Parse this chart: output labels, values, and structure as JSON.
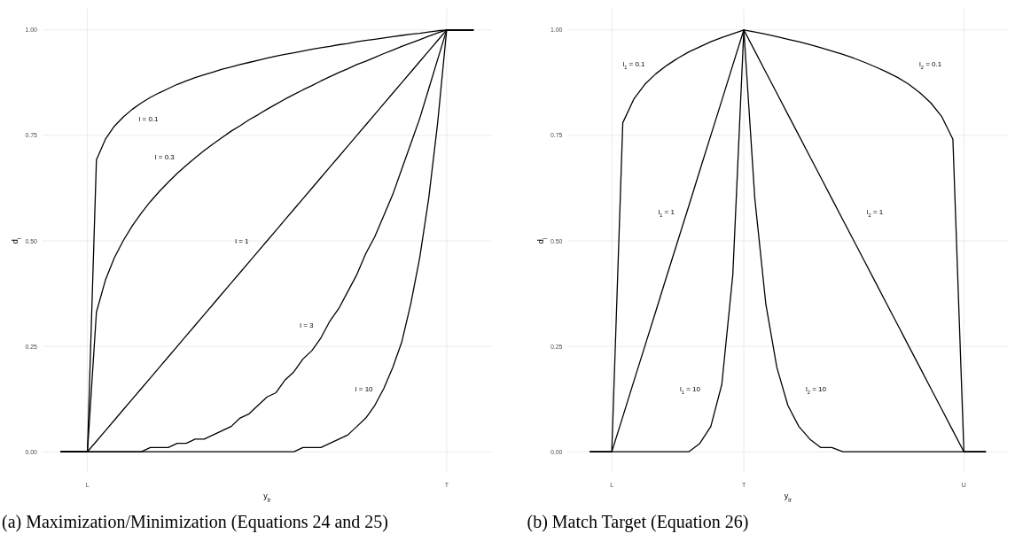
{
  "chart_data": [
    {
      "type": "line",
      "title": "(a) Maximization/Minimization (Equations 24 and 25)",
      "xlabel": "y$_{ir}$",
      "ylabel": "d$_{i}$",
      "ylim": [
        -0.05,
        1.05
      ],
      "yticks": [
        {
          "value": 0,
          "label": "0.00"
        },
        {
          "value": 0.25,
          "label": "0.25"
        },
        {
          "value": 0.5,
          "label": "0.50"
        },
        {
          "value": 0.75,
          "label": "0.75"
        },
        {
          "value": 1,
          "label": "1.00"
        }
      ],
      "grid": true,
      "marker": "none",
      "line_style": "solid",
      "categories": [
        null,
        null,
        null,
        "L",
        null,
        null,
        null,
        null,
        null,
        null,
        null,
        null,
        null,
        null,
        null,
        null,
        null,
        null,
        null,
        null,
        null,
        null,
        null,
        null,
        null,
        null,
        null,
        null,
        null,
        null,
        null,
        null,
        null,
        null,
        null,
        null,
        null,
        null,
        null,
        null,
        null,
        null,
        null,
        "T",
        null,
        null,
        null
      ],
      "series": [
        {
          "color": "#000000",
          "values": [
            0,
            0,
            0,
            0,
            0.692,
            0.741,
            0.772,
            0.794,
            0.812,
            0.827,
            0.84,
            0.851,
            0.861,
            0.871,
            0.879,
            0.887,
            0.894,
            0.9,
            0.907,
            0.912,
            0.918,
            0.923,
            0.928,
            0.933,
            0.938,
            0.942,
            0.946,
            0.95,
            0.954,
            0.958,
            0.961,
            0.965,
            0.968,
            0.972,
            0.975,
            0.978,
            0.981,
            0.984,
            0.987,
            0.99,
            0.992,
            0.995,
            0.998,
            1,
            1,
            1,
            1
          ]
        },
        {
          "color": "#000000",
          "values": [
            0,
            0,
            0,
            0,
            0.331,
            0.407,
            0.46,
            0.501,
            0.536,
            0.566,
            0.593,
            0.617,
            0.639,
            0.66,
            0.679,
            0.697,
            0.714,
            0.73,
            0.745,
            0.76,
            0.773,
            0.787,
            0.799,
            0.812,
            0.824,
            0.836,
            0.847,
            0.858,
            0.868,
            0.879,
            0.889,
            0.899,
            0.908,
            0.918,
            0.926,
            0.935,
            0.944,
            0.952,
            0.961,
            0.969,
            0.977,
            0.985,
            0.993,
            1,
            1,
            1,
            1
          ]
        },
        {
          "color": "#000000",
          "values": [
            0,
            0,
            0,
            0,
            0.025,
            0.05,
            0.075,
            0.1,
            0.125,
            0.15,
            0.175,
            0.2,
            0.225,
            0.25,
            0.275,
            0.3,
            0.325,
            0.35,
            0.375,
            0.4,
            0.425,
            0.45,
            0.475,
            0.5,
            0.525,
            0.55,
            0.575,
            0.6,
            0.625,
            0.65,
            0.675,
            0.7,
            0.725,
            0.75,
            0.775,
            0.8,
            0.825,
            0.85,
            0.875,
            0.9,
            0.925,
            0.95,
            0.975,
            1,
            1,
            1,
            1
          ]
        },
        {
          "color": "#000000",
          "values": [
            0,
            0,
            0,
            0,
            0,
            0,
            0,
            0,
            0,
            0,
            0.01,
            0.01,
            0.01,
            0.02,
            0.02,
            0.03,
            0.03,
            0.04,
            0.05,
            0.06,
            0.08,
            0.09,
            0.11,
            0.13,
            0.14,
            0.17,
            0.19,
            0.22,
            0.24,
            0.27,
            0.31,
            0.34,
            0.38,
            0.42,
            0.47,
            0.51,
            0.56,
            0.61,
            0.67,
            0.73,
            0.79,
            0.86,
            0.93,
            1,
            1,
            1,
            1
          ]
        },
        {
          "color": "#000000",
          "values": [
            0,
            0,
            0,
            0,
            0,
            0,
            0,
            0,
            0,
            0,
            0,
            0,
            0,
            0,
            0,
            0,
            0,
            0,
            0,
            0,
            0,
            0,
            0,
            0,
            0,
            0,
            0,
            0.01,
            0.01,
            0.01,
            0.02,
            0.03,
            0.04,
            0.06,
            0.08,
            0.11,
            0.15,
            0.2,
            0.26,
            0.35,
            0.46,
            0.6,
            0.78,
            1,
            1,
            1,
            1
          ]
        }
      ],
      "annotations": [
        "l = 0.1",
        "l = 0.3",
        "l = 1",
        "l = 3",
        "l = 10"
      ]
    },
    {
      "type": "line",
      "title": "(b) Match Target (Equation 26)",
      "xlabel": "y$_{ir}$",
      "ylabel": "d$_{i}$",
      "ylim": [
        -0.05,
        1.05
      ],
      "yticks": [
        {
          "value": 0,
          "label": "0.00"
        },
        {
          "value": 0.25,
          "label": "0.25"
        },
        {
          "value": 0.5,
          "label": "0.50"
        },
        {
          "value": 0.75,
          "label": "0.75"
        },
        {
          "value": 1,
          "label": "1.00"
        }
      ],
      "grid": true,
      "marker": "none",
      "line_style": "solid",
      "categories": [
        null,
        null,
        "L",
        null,
        null,
        null,
        null,
        null,
        null,
        null,
        null,
        null,
        null,
        null,
        "T",
        null,
        null,
        null,
        null,
        null,
        null,
        null,
        null,
        null,
        null,
        null,
        null,
        null,
        null,
        null,
        null,
        null,
        null,
        null,
        "U",
        null,
        null
      ],
      "series": [
        {
          "color": "#000000",
          "values": [
            0,
            0,
            0,
            0.78,
            0.836,
            0.871,
            0.896,
            0.916,
            0.933,
            0.948,
            0.96,
            0.972,
            0.982,
            0.991,
            1,
            0.995,
            0.99,
            0.984,
            0.978,
            0.972,
            0.965,
            0.958,
            0.95,
            0.942,
            0.933,
            0.923,
            0.912,
            0.9,
            0.887,
            0.871,
            0.851,
            0.827,
            0.794,
            0.741,
            0,
            0,
            0
          ]
        },
        {
          "color": "#000000",
          "values": [
            0,
            0,
            0,
            0.083,
            0.167,
            0.25,
            0.333,
            0.417,
            0.5,
            0.583,
            0.667,
            0.75,
            0.833,
            0.917,
            1,
            0.95,
            0.9,
            0.85,
            0.8,
            0.75,
            0.7,
            0.65,
            0.6,
            0.55,
            0.5,
            0.45,
            0.4,
            0.35,
            0.3,
            0.25,
            0.2,
            0.15,
            0.1,
            0.05,
            0,
            0,
            0
          ]
        },
        {
          "color": "#000000",
          "values": [
            0,
            0,
            0,
            0,
            0,
            0,
            0,
            0,
            0,
            0,
            0.02,
            0.06,
            0.16,
            0.42,
            1,
            0.6,
            0.35,
            0.2,
            0.11,
            0.06,
            0.03,
            0.01,
            0.01,
            0,
            0,
            0,
            0,
            0,
            0,
            0,
            0,
            0,
            0,
            0,
            0,
            0,
            0
          ]
        }
      ],
      "annotations": [
        "l$_{1}$ = 0.1",
        "l$_{2}$ = 0.1",
        "l$_{1}$ = 1",
        "l$_{2}$ = 1",
        "l$_{1}$ = 10",
        "l$_{2}$ = 10"
      ]
    }
  ]
}
